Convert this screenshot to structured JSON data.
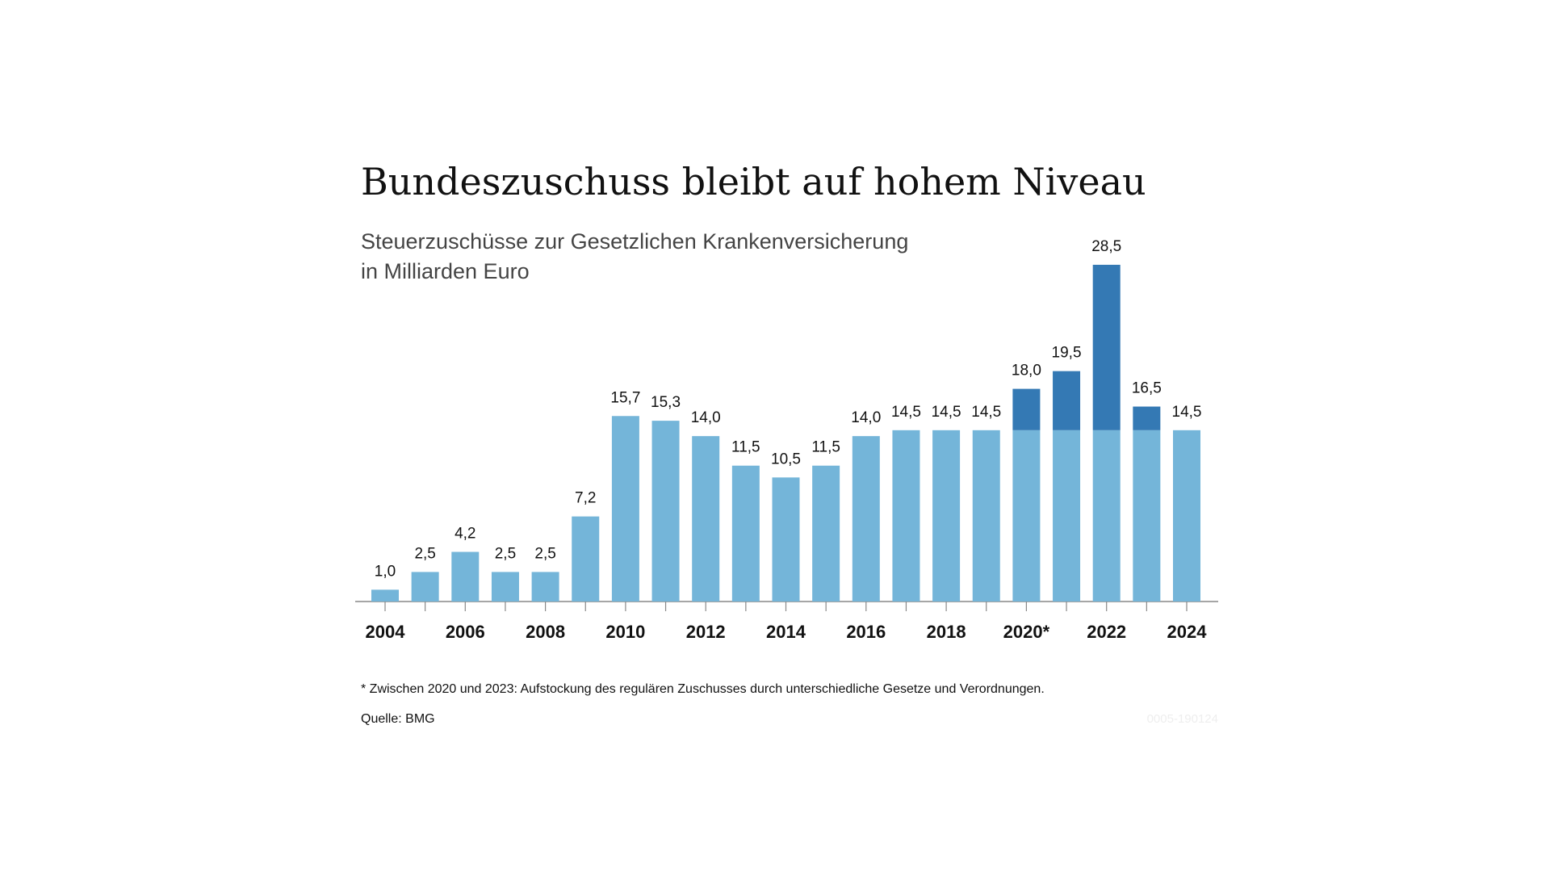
{
  "chart_data": {
    "type": "stacked-bar",
    "title": "Bundeszuschuss bleibt auf hohem Niveau",
    "subtitle": [
      "Steuerzuschüsse zur Gesetzlichen Krankenversicherung",
      "in Milliarden Euro"
    ],
    "categories": [
      "2004",
      null,
      "2006",
      null,
      "2008",
      null,
      "2010",
      null,
      "2012",
      null,
      "2014",
      null,
      "2016",
      null,
      "2018",
      null,
      "2020*",
      null,
      "2022",
      null,
      "2024"
    ],
    "series": [
      {
        "color": "#74b5d9",
        "values": [
          1.0,
          2.5,
          4.2,
          2.5,
          2.5,
          7.2,
          15.7,
          15.3,
          14.0,
          11.5,
          10.5,
          11.5,
          14.0,
          14.5,
          14.5,
          14.5,
          14.5,
          14.5,
          14.5,
          14.5,
          14.5
        ]
      },
      {
        "color": "#3479b4",
        "values": [
          null,
          null,
          null,
          null,
          null,
          null,
          null,
          null,
          null,
          null,
          null,
          null,
          null,
          null,
          null,
          null,
          3.5,
          5.0,
          14.0,
          2.0,
          null
        ]
      }
    ],
    "values": [
      1.0,
      2.5,
      4.2,
      2.5,
      2.5,
      7.2,
      15.7,
      15.3,
      14.0,
      11.5,
      10.5,
      11.5,
      14.0,
      14.5,
      14.5,
      14.5,
      18.0,
      19.5,
      28.5,
      16.5,
      14.5
    ],
    "value_labels": [
      "1,0",
      "2,5",
      "4,2",
      "2,5",
      "2,5",
      "7,2",
      "15,7",
      "15,3",
      "14,0",
      "11,5",
      "10,5",
      "11,5",
      "14,0",
      "14,5",
      "14,5",
      "14,5",
      "18,0",
      "19,5",
      "28,5",
      "16,5",
      "14,5"
    ],
    "ylim": [
      0,
      30
    ],
    "footnote": "* Zwischen 2020 und 2023: Aufstockung des regulären Zuschusses durch unterschiedliche Gesetze und Verordnungen.",
    "source": "Quelle: BMG",
    "id": "0005-190124"
  }
}
